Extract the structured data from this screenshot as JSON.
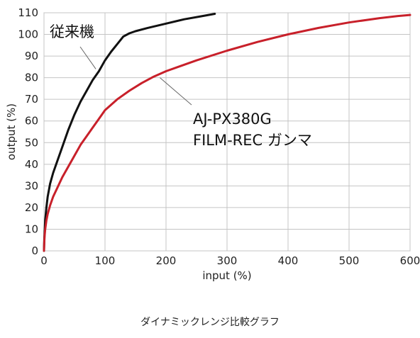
{
  "caption": "ダイナミックレンジ比較グラフ",
  "chart_data": {
    "type": "line",
    "xlabel": "input (%)",
    "ylabel": "output (%)",
    "xlim": [
      0,
      600
    ],
    "ylim": [
      0,
      110
    ],
    "xticks": [
      0,
      100,
      200,
      300,
      400,
      500,
      600
    ],
    "yticks": [
      0,
      10,
      20,
      30,
      40,
      50,
      60,
      70,
      80,
      90,
      100,
      110
    ],
    "grid": true,
    "series": [
      {
        "name": "従来機",
        "color": "#111111",
        "x": [
          0,
          0.5,
          1,
          2,
          4,
          6,
          10,
          15,
          20,
          30,
          40,
          50,
          60,
          70,
          80,
          90,
          100,
          110,
          120,
          130,
          140,
          150,
          170,
          200,
          230,
          260,
          280
        ],
        "y": [
          0,
          5,
          9,
          14,
          20,
          25,
          31,
          36,
          40,
          48,
          56,
          63,
          69,
          74,
          79,
          83,
          88,
          92,
          95.5,
          99,
          100.5,
          101.5,
          103,
          105,
          107,
          108.5,
          109.5
        ]
      },
      {
        "name": "AJ-PX380G FILM-REC ガンマ",
        "color": "#c8202a",
        "x": [
          0,
          0.5,
          1,
          2,
          4,
          6,
          10,
          15,
          20,
          30,
          40,
          50,
          60,
          70,
          80,
          90,
          100,
          120,
          140,
          160,
          180,
          200,
          250,
          300,
          350,
          400,
          450,
          500,
          550,
          580,
          600
        ],
        "y": [
          0,
          4,
          7,
          10,
          14,
          17,
          21,
          25,
          28,
          34,
          39,
          44,
          49,
          53,
          57,
          61,
          65,
          70,
          74,
          77.5,
          80.5,
          83,
          88,
          92.5,
          96.5,
          100,
          103,
          105.5,
          107.5,
          108.5,
          109
        ]
      }
    ],
    "annotations": [
      {
        "series": 0,
        "text_lines": [
          "従来機"
        ],
        "pointer_x": 85,
        "pointer_y": 84
      },
      {
        "series": 1,
        "text_lines": [
          "AJ-PX380G",
          "FILM-REC ガンマ"
        ],
        "pointer_x": 190,
        "pointer_y": 80
      }
    ]
  }
}
